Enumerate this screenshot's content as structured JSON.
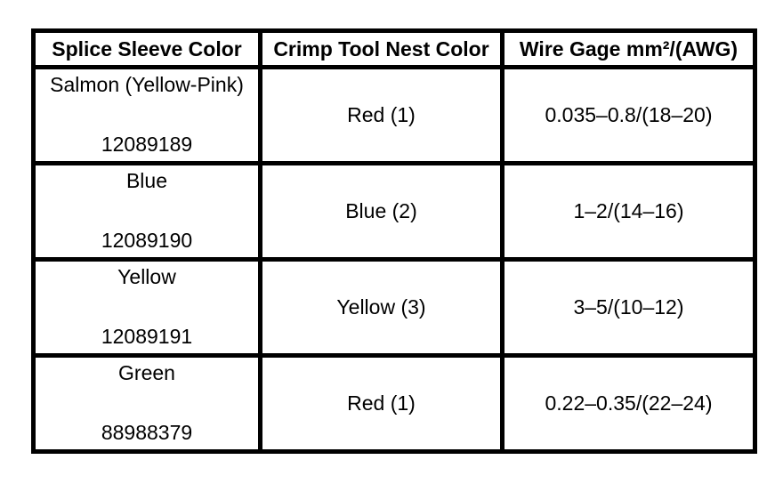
{
  "table": {
    "headers": [
      "Splice Sleeve Color",
      "Crimp Tool Nest Color",
      "Wire Gage mm²/(AWG)"
    ],
    "rows": [
      {
        "sleeve_color": "Salmon (Yellow-Pink)",
        "part_number": "12089189",
        "nest_color": "Red (1)",
        "wire_gage": "0.035–0.8/(18–20)"
      },
      {
        "sleeve_color": "Blue",
        "part_number": "12089190",
        "nest_color": "Blue (2)",
        "wire_gage": "1–2/(14–16)"
      },
      {
        "sleeve_color": "Yellow",
        "part_number": "12089191",
        "nest_color": "Yellow (3)",
        "wire_gage": "3–5/(10–12)"
      },
      {
        "sleeve_color": "Green",
        "part_number": "88988379",
        "nest_color": "Red (1)",
        "wire_gage": "0.22–0.35/(22–24)"
      }
    ],
    "colors": {
      "border": "#000000",
      "background": "#ffffff",
      "text": "#000000"
    }
  }
}
